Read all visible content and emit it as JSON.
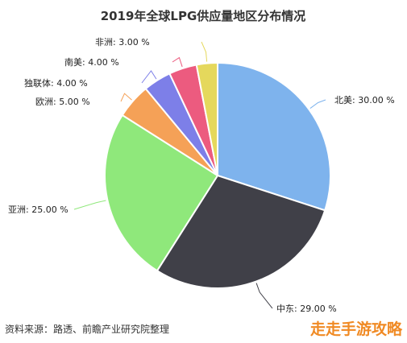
{
  "chart_data": {
    "type": "pie",
    "title": "2019年全球LPG供应量地区分布情况",
    "unit": "%",
    "slices": [
      {
        "name": "北美",
        "value": 30.0,
        "label": "北美: 30.00 %",
        "color": "#7eb3ed"
      },
      {
        "name": "中东",
        "value": 29.0,
        "label": "中东: 29.00 %",
        "color": "#404048"
      },
      {
        "name": "亚洲",
        "value": 25.0,
        "label": "亚洲: 25.00 %",
        "color": "#8fe87b"
      },
      {
        "name": "欧洲",
        "value": 5.0,
        "label": "欧洲: 5.00 %",
        "color": "#f5a157"
      },
      {
        "name": "独联体",
        "value": 4.0,
        "label": "独联体: 4.00 %",
        "color": "#7d7fe8"
      },
      {
        "name": "南美",
        "value": 4.0,
        "label": "南美: 4.00 %",
        "color": "#ec5b7f"
      },
      {
        "name": "非洲",
        "value": 3.0,
        "label": "非洲: 3.00 %",
        "color": "#e5d85c"
      }
    ]
  },
  "footer": {
    "source": "资料来源：路透、前瞻产业研究院整理"
  },
  "watermark": {
    "text": "走走手游攻略"
  }
}
